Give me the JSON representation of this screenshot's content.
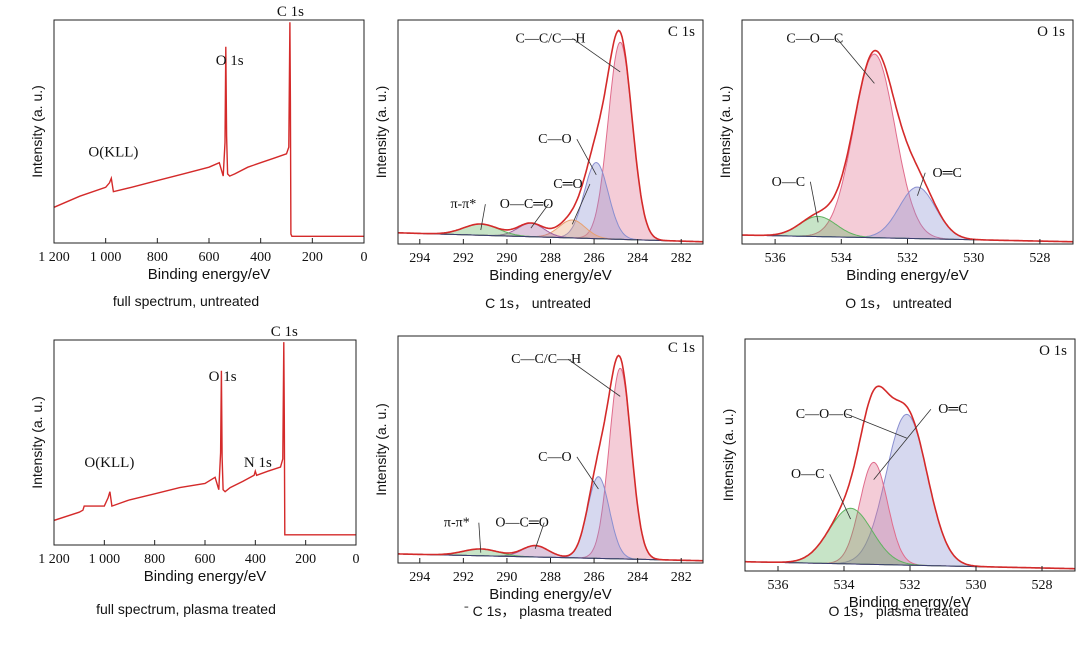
{
  "chart_data": [
    {
      "type": "line",
      "panel": "survey-untreated",
      "caption": "full spectrum, untreated",
      "xlabel": "Binding energy/eV",
      "ylabel": "Intensity (a. u.)",
      "xlim": [
        1200,
        0
      ],
      "xticks": [
        1200,
        1000,
        800,
        600,
        400,
        200,
        0
      ],
      "xtick_labels": [
        "1 200",
        "1 000",
        "800",
        "600",
        "400",
        "200",
        "0"
      ],
      "ylim": [
        0,
        100
      ],
      "series": [
        {
          "name": "survey",
          "color": "#d42a2a",
          "x": [
            1200,
            1100,
            1000,
            985,
            978,
            970,
            900,
            800,
            700,
            600,
            560,
            545,
            538,
            535,
            532,
            528,
            520,
            500,
            450,
            400,
            350,
            300,
            291,
            287,
            285,
            283,
            279,
            270,
            250,
            200,
            150,
            100,
            50,
            0
          ],
          "y": [
            16,
            21,
            25,
            27,
            29,
            23,
            25,
            28,
            31,
            34,
            36,
            30,
            45,
            88,
            48,
            31,
            30,
            31,
            34,
            36,
            38,
            40,
            43,
            99,
            63,
            4,
            3,
            3,
            3,
            3,
            3,
            3,
            3,
            3
          ]
        }
      ],
      "annotations": [
        {
          "text": "C 1s",
          "x": 285,
          "y": 100
        },
        {
          "text": "O 1s",
          "x": 520,
          "y": 78
        },
        {
          "text": "O(KLL)",
          "x": 970,
          "y": 37
        }
      ]
    },
    {
      "type": "line",
      "panel": "c1s-untreated",
      "caption": "C 1s， untreated",
      "title": "C 1s",
      "xlabel": "Binding energy/eV",
      "ylabel": "Intensity (a. u.)",
      "xlim": [
        295,
        281
      ],
      "xticks": [
        294,
        292,
        290,
        288,
        286,
        284,
        282
      ],
      "xtick_labels": [
        "294",
        "292",
        "290",
        "288",
        "286",
        "284",
        "282"
      ],
      "ylim": [
        0,
        100
      ],
      "peaks": [
        {
          "name": "C—C/C—H",
          "center": 284.8,
          "height": 88,
          "width": 0.55,
          "color": "#e06c8c"
        },
        {
          "name": "C—O",
          "center": 285.9,
          "height": 34,
          "width": 0.55,
          "color": "#8a8fd0"
        },
        {
          "name": "C═O",
          "center": 287.0,
          "height": 8,
          "width": 0.6,
          "color": "#e8a070"
        },
        {
          "name": "O—C═O",
          "center": 288.9,
          "height": 6,
          "width": 0.6,
          "color": "#a060a0"
        },
        {
          "name": "π-π*",
          "center": 291.2,
          "height": 5,
          "width": 0.8,
          "color": "#5fb35f"
        }
      ],
      "baseline": {
        "start": 5,
        "end": 1
      },
      "labels": [
        {
          "text": "C—C/C—H",
          "x": 288.0,
          "y": 90
        },
        {
          "text": "C—O",
          "x": 287.8,
          "y": 45
        },
        {
          "text": "C═O",
          "x": 287.2,
          "y": 25
        },
        {
          "text": "O—C═O",
          "x": 289.1,
          "y": 16
        },
        {
          "text": "π-π*",
          "x": 292.0,
          "y": 16
        }
      ]
    },
    {
      "type": "line",
      "panel": "o1s-untreated",
      "caption": "O 1s， untreated",
      "title": "O 1s",
      "xlabel": "Binding energy/eV",
      "ylabel": "Intensity (a. u.)",
      "xlim": [
        537,
        527
      ],
      "xticks": [
        536,
        534,
        532,
        530,
        528
      ],
      "xtick_labels": [
        "536",
        "534",
        "532",
        "530",
        "528"
      ],
      "ylim": [
        0,
        100
      ],
      "peaks": [
        {
          "name": "C—O—C",
          "center": 533.0,
          "height": 82,
          "width": 0.62,
          "color": "#e06c8c"
        },
        {
          "name": "O═C",
          "center": 531.7,
          "height": 23,
          "width": 0.55,
          "color": "#8a8fd0"
        },
        {
          "name": "O—C",
          "center": 534.7,
          "height": 9,
          "width": 0.55,
          "color": "#5fb35f"
        }
      ],
      "baseline": {
        "start": 4,
        "end": 1
      },
      "labels": [
        {
          "text": "C—O—C",
          "x": 534.8,
          "y": 90
        },
        {
          "text": "O═C",
          "x": 530.8,
          "y": 30
        },
        {
          "text": "O—C",
          "x": 535.6,
          "y": 26
        }
      ]
    },
    {
      "type": "line",
      "panel": "survey-plasma",
      "caption": "full spectrum, plasma treated",
      "xlabel": "Binding energy/eV",
      "ylabel": "Intensity (a. u.)",
      "xlim": [
        1200,
        0
      ],
      "xticks": [
        1200,
        1000,
        800,
        600,
        400,
        200,
        0
      ],
      "xtick_labels": [
        "1 200",
        "1 000",
        "800",
        "600",
        "400",
        "200",
        "0"
      ],
      "ylim": [
        0,
        100
      ],
      "series": [
        {
          "name": "survey",
          "color": "#d42a2a",
          "x": [
            1200,
            1100,
            1085,
            1080,
            1000,
            985,
            978,
            970,
            900,
            800,
            700,
            600,
            560,
            545,
            538,
            535,
            532,
            528,
            520,
            500,
            450,
            405,
            400,
            395,
            350,
            300,
            291,
            287,
            285,
            283,
            279,
            270,
            250,
            200,
            150,
            100,
            50,
            0
          ],
          "y": [
            12,
            16,
            17,
            19,
            19,
            23,
            26,
            19,
            22,
            25,
            28,
            30,
            33,
            27,
            45,
            85,
            43,
            27,
            26,
            28,
            31,
            34,
            36,
            34,
            36,
            38,
            42,
            99,
            62,
            5,
            5,
            5,
            5,
            5,
            5,
            5,
            5,
            5
          ]
        }
      ],
      "annotations": [
        {
          "text": "C 1s",
          "x": 285,
          "y": 100
        },
        {
          "text": "O 1s",
          "x": 530,
          "y": 78
        },
        {
          "text": "O(KLL)",
          "x": 980,
          "y": 36
        },
        {
          "text": "N 1s",
          "x": 390,
          "y": 36
        }
      ]
    },
    {
      "type": "line",
      "panel": "c1s-plasma",
      "caption": "ˉ C 1s， plasma treated",
      "title": "C 1s",
      "xlabel": "Binding energy/eV",
      "ylabel": "Intensity (a. u.)",
      "xlim": [
        295,
        281
      ],
      "xticks": [
        294,
        292,
        290,
        288,
        286,
        284,
        282
      ],
      "xtick_labels": [
        "294",
        "292",
        "290",
        "288",
        "286",
        "284",
        "282"
      ],
      "ylim": [
        0,
        100
      ],
      "peaks": [
        {
          "name": "C—C/C—H",
          "center": 284.8,
          "height": 84,
          "width": 0.5,
          "color": "#e06c8c"
        },
        {
          "name": "C—O",
          "center": 285.8,
          "height": 36,
          "width": 0.5,
          "color": "#8a8fd0"
        },
        {
          "name": "O—C═O",
          "center": 288.7,
          "height": 5,
          "width": 0.6,
          "color": "#a060a0"
        },
        {
          "name": "π-π*",
          "center": 291.2,
          "height": 3,
          "width": 0.8,
          "color": "#5fb35f"
        }
      ],
      "baseline": {
        "start": 4,
        "end": 1
      },
      "labels": [
        {
          "text": "C—C/C—H",
          "x": 288.2,
          "y": 88
        },
        {
          "text": "C—O",
          "x": 287.8,
          "y": 45
        },
        {
          "text": "O—C═O",
          "x": 289.3,
          "y": 16
        },
        {
          "text": "π-π*",
          "x": 292.3,
          "y": 16
        }
      ]
    },
    {
      "type": "line",
      "panel": "o1s-plasma",
      "caption": "O 1s， plasma treated",
      "title": "O 1s",
      "xlabel": "Binding energy/eV",
      "ylabel": "Intensity (a. u.)",
      "xlim": [
        537,
        527
      ],
      "xticks": [
        536,
        534,
        532,
        530,
        528
      ],
      "xtick_labels": [
        "536",
        "534",
        "532",
        "530",
        "528"
      ],
      "ylim": [
        0,
        100
      ],
      "peaks": [
        {
          "name": "O═C",
          "center": 532.1,
          "height": 65,
          "width": 0.62,
          "color": "#8a8fd0"
        },
        {
          "name": "C—O—C",
          "center": 533.1,
          "height": 44,
          "width": 0.42,
          "color": "#e06c8c"
        },
        {
          "name": "O—C",
          "center": 533.8,
          "height": 24,
          "width": 0.65,
          "color": "#5fb35f"
        }
      ],
      "baseline": {
        "start": 4,
        "end": 1
      },
      "labels": [
        {
          "text": "C—O—C",
          "x": 534.6,
          "y": 66
        },
        {
          "text": "O═C",
          "x": 530.7,
          "y": 68
        },
        {
          "text": "O—C",
          "x": 535.1,
          "y": 40
        }
      ]
    }
  ]
}
